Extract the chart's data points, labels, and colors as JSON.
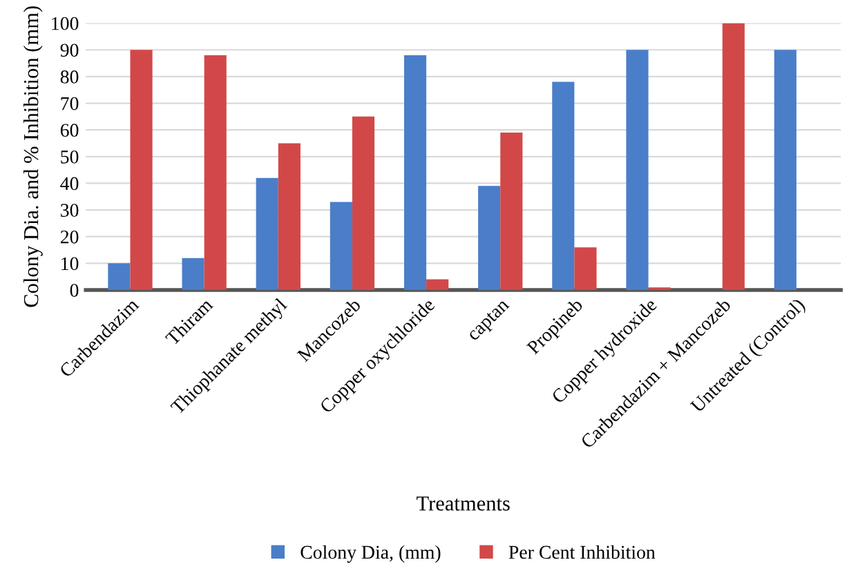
{
  "chart_data": {
    "type": "bar",
    "xlabel": "Treatments",
    "ylabel": "Colony Dia. and % Inhibition (mm)",
    "categories": [
      "Carbendazim",
      "Thiram",
      "Thiophanate methyl",
      "Mancozeb",
      "Copper oxychloride",
      "captan",
      "Propineb",
      "Copper hydroxide",
      "Carbendazim + Mancozeb",
      "Untreated (Control)"
    ],
    "series": [
      {
        "name": "Colony Dia, (mm)",
        "color": "#4a7ec8",
        "values": [
          10,
          12,
          42,
          33,
          88,
          39,
          78,
          90,
          0,
          90
        ]
      },
      {
        "name": "Per Cent Inhibition",
        "color": "#d24848",
        "values": [
          90,
          88,
          55,
          65,
          4,
          59,
          16,
          1,
          100,
          0
        ]
      }
    ],
    "ylim": [
      0,
      100
    ],
    "yticks": [
      0,
      10,
      20,
      30,
      40,
      50,
      60,
      70,
      80,
      90,
      100
    ],
    "grid": "y",
    "legend": "bottom"
  }
}
